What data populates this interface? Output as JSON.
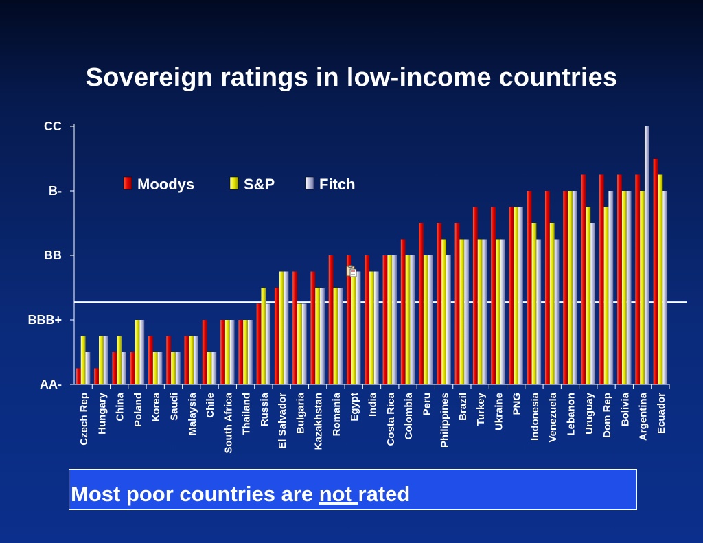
{
  "slide": {
    "title": "Sovereign ratings in low-income countries",
    "callout": {
      "before": "Most poor countries are ",
      "underlined": "not ",
      "after": "rated"
    }
  },
  "colors": {
    "background": "#0a2a7a",
    "moodys": "#e00000",
    "sp": "#e8e800",
    "fitch": "#b8bcdc",
    "callout_bg": "#1f4fe8",
    "reference_line": "#ffffff"
  },
  "chart_data": {
    "type": "bar",
    "title": "Sovereign ratings in low-income countries",
    "xlabel": "",
    "ylabel": "",
    "y_ticks": [
      "AA-",
      "BBB+",
      "BB",
      "B-",
      "CC"
    ],
    "y_tick_values": [
      0,
      4,
      8,
      12,
      16
    ],
    "ylim": [
      0,
      16
    ],
    "reference_line_y": 5.1,
    "legend": {
      "placement": "top-left",
      "entries": [
        "Moodys",
        "S&P",
        "Fitch"
      ]
    },
    "categories": [
      "Czech Rep",
      "Hungary",
      "China",
      "Poland",
      "Korea",
      "Saudi",
      "Malaysia",
      "Chile",
      "South Africa",
      "Thailand",
      "Russia",
      "El Salvador",
      "Bulgaria",
      "Kazakhstan",
      "Romania",
      "Egypt",
      "India",
      "Costa Rica",
      "Colombia",
      "Peru",
      "Philippines",
      "Brazil",
      "Turkey",
      "Ukraine",
      "PNG",
      "Indonesia",
      "Venezuela",
      "Lebanon",
      "Uruguay",
      "Dom Rep",
      "Bolivia",
      "Argentina",
      "Ecuador"
    ],
    "series": [
      {
        "name": "Moodys",
        "color": "#e00000",
        "values": [
          1,
          1,
          2,
          2,
          3,
          3,
          3,
          4,
          4,
          4,
          5,
          6,
          7,
          7,
          8,
          8,
          8,
          8,
          9,
          10,
          10,
          10,
          11,
          11,
          11,
          12,
          12,
          12,
          13,
          13,
          13,
          13,
          14
        ]
      },
      {
        "name": "S&P",
        "color": "#e8e800",
        "values": [
          3,
          3,
          3,
          4,
          2,
          2,
          3,
          2,
          4,
          4,
          6,
          7,
          5,
          6,
          6,
          7,
          7,
          8,
          8,
          8,
          9,
          9,
          9,
          9,
          11,
          10,
          10,
          12,
          11,
          11,
          12,
          12,
          13
        ]
      },
      {
        "name": "Fitch",
        "color": "#b8bcdc",
        "values": [
          2,
          3,
          2,
          4,
          2,
          2,
          3,
          2,
          4,
          4,
          5,
          7,
          5,
          6,
          6,
          7,
          7,
          8,
          8,
          8,
          8,
          9,
          9,
          9,
          11,
          9,
          9,
          12,
          10,
          12,
          12,
          16,
          12
        ]
      }
    ]
  }
}
